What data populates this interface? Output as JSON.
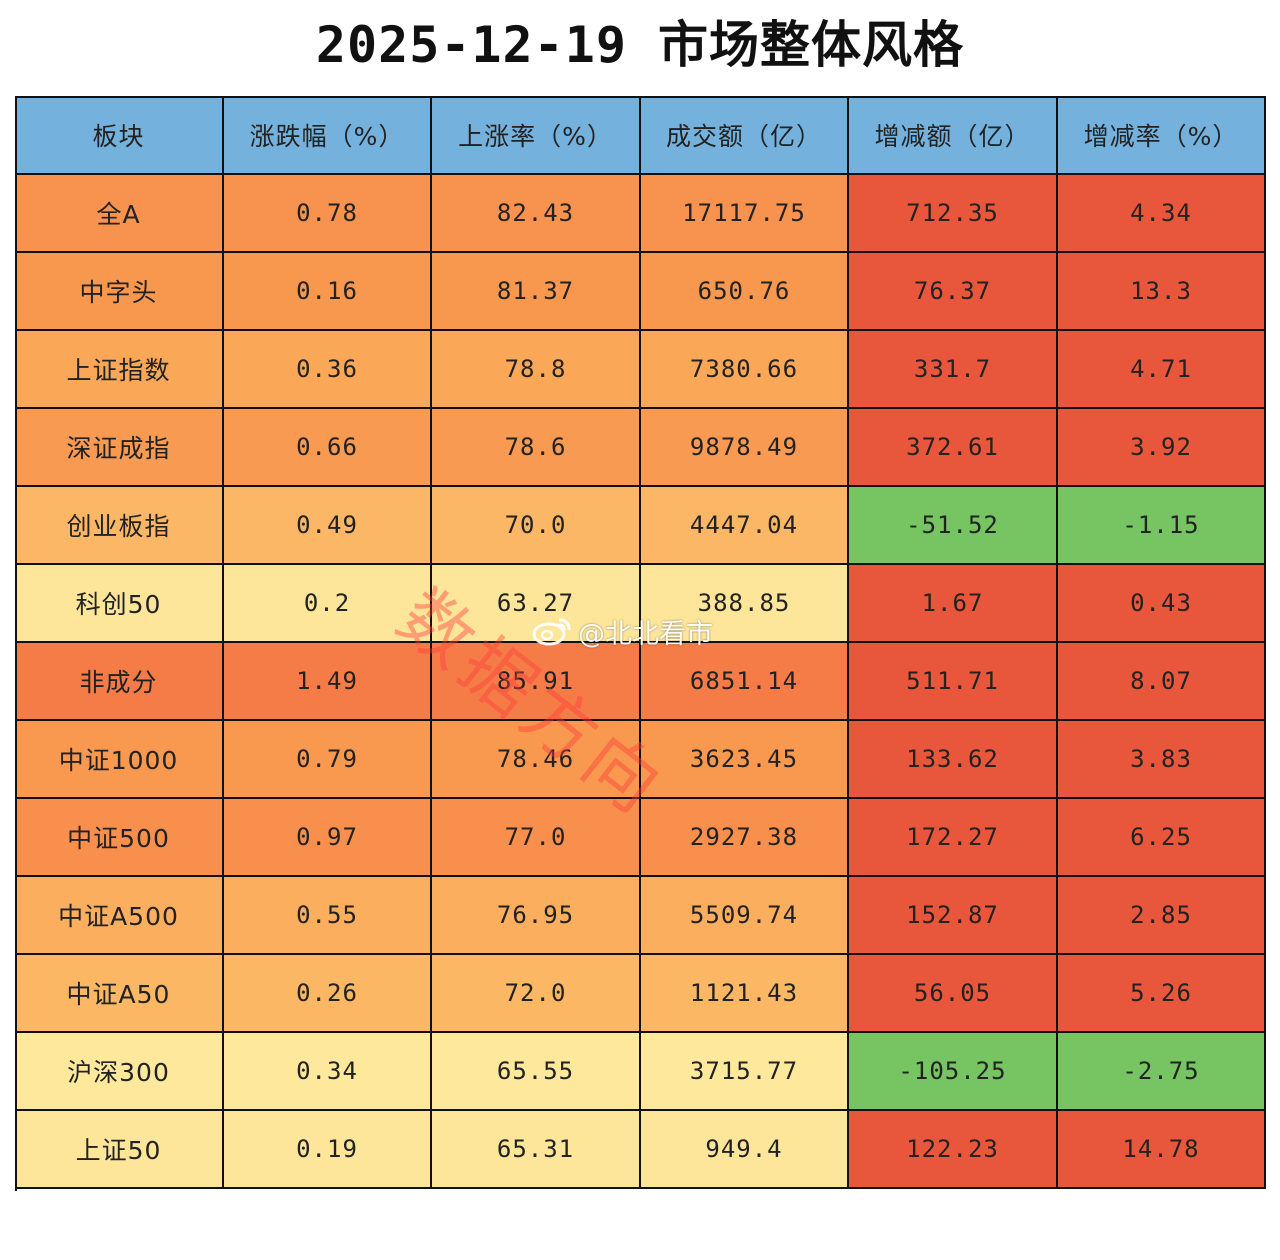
{
  "chart_data": {
    "type": "table",
    "title": "2025-12-19  市场整体风格",
    "columns": [
      "板块",
      "涨跌幅（%）",
      "上涨率（%）",
      "成交额（亿）",
      "增减额（亿）",
      "增减率（%）"
    ],
    "rows": [
      [
        "全A",
        "0.78",
        "82.43",
        "17117.75",
        "712.35",
        "4.34"
      ],
      [
        "中字头",
        "0.16",
        "81.37",
        "650.76",
        "76.37",
        "13.3"
      ],
      [
        "上证指数",
        "0.36",
        "78.8",
        "7380.66",
        "331.7",
        "4.71"
      ],
      [
        "深证成指",
        "0.66",
        "78.6",
        "9878.49",
        "372.61",
        "3.92"
      ],
      [
        "创业板指",
        "0.49",
        "70.0",
        "4447.04",
        "-51.52",
        "-1.15"
      ],
      [
        "科创50",
        "0.2",
        "63.27",
        "388.85",
        "1.67",
        "0.43"
      ],
      [
        "非成分",
        "1.49",
        "85.91",
        "6851.14",
        "511.71",
        "8.07"
      ],
      [
        "中证1000",
        "0.79",
        "78.46",
        "3623.45",
        "133.62",
        "3.83"
      ],
      [
        "中证500",
        "0.97",
        "77.0",
        "2927.38",
        "172.27",
        "6.25"
      ],
      [
        "中证A500",
        "0.55",
        "76.95",
        "5509.74",
        "152.87",
        "2.85"
      ],
      [
        "中证A50",
        "0.26",
        "72.0",
        "1121.43",
        "56.05",
        "5.26"
      ],
      [
        "沪深300",
        "0.34",
        "65.55",
        "3715.77",
        "-105.25",
        "-2.75"
      ],
      [
        "上证50",
        "0.19",
        "65.31",
        "949.4",
        "122.23",
        "14.78"
      ]
    ],
    "row_colors": [
      "#f8934f",
      "#f8984f",
      "#faa858",
      "#f99a52",
      "#fbb765",
      "#fde69a",
      "#f57c47",
      "#f9984f",
      "#f88f4c",
      "#fbae5e",
      "#fbb764",
      "#fde89c",
      "#fde59a"
    ],
    "header_color": "#74b1dc",
    "positive_change_color": "#e8573b",
    "negative_change_color": "#76c462"
  },
  "watermark": {
    "stamp": "数据方向",
    "handle": "@北北看市",
    "logo_icon": "weibo-logo-icon"
  }
}
